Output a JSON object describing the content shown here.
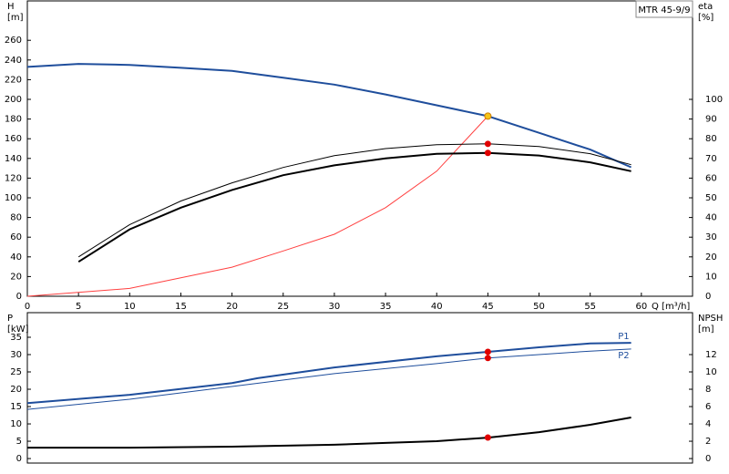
{
  "chart_data": [
    {
      "type": "line",
      "title": "MTR 45-9/9",
      "x_label": "Q [m³/h]",
      "y_label": "H",
      "y_unit": "[m]",
      "y2_label": "eta",
      "y2_unit": "[%]",
      "xlim": [
        0,
        65
      ],
      "xticks": [
        0,
        5,
        10,
        15,
        20,
        25,
        30,
        35,
        40,
        45,
        50,
        55,
        60
      ],
      "ylim": [
        0,
        300
      ],
      "yticks": [
        0,
        20,
        40,
        60,
        80,
        100,
        120,
        140,
        160,
        180,
        200,
        220,
        240,
        260
      ],
      "y2lim": [
        0,
        150
      ],
      "y2ticks": [
        0,
        10,
        20,
        30,
        40,
        50,
        60,
        70,
        80,
        90,
        100
      ],
      "series": [
        {
          "x": [
            0,
            5,
            10,
            15,
            20,
            25,
            30,
            35,
            40,
            45,
            50,
            55,
            59
          ],
          "values": [
            233,
            236,
            235,
            232,
            229,
            222,
            215,
            205,
            194,
            183,
            166,
            149,
            131
          ],
          "color": "#1f4e9c",
          "width": 2
        },
        {
          "x": [
            0,
            10,
            20,
            25,
            30,
            35,
            40,
            45
          ],
          "values": [
            0,
            8,
            29.5,
            46,
            63,
            90,
            127,
            183
          ],
          "color": "#ff4040",
          "width": 1
        },
        {
          "x": [
            5,
            10,
            15,
            20,
            25,
            30,
            35,
            40,
            45,
            50,
            55,
            59
          ],
          "values": [
            20,
            36.4,
            48.4,
            57.6,
            65.4,
            71.4,
            75,
            77,
            77.4,
            76,
            72.4,
            66.8
          ],
          "color": "#000000",
          "width": 1,
          "axis": "y2"
        },
        {
          "x": [
            5,
            10,
            15,
            20,
            25,
            30,
            35,
            40,
            45,
            50,
            55,
            59
          ],
          "values": [
            17.5,
            34,
            45,
            54,
            61.5,
            66.5,
            70,
            72.3,
            72.8,
            71.5,
            68,
            63.5
          ],
          "color": "#000000",
          "width": 2,
          "axis": "y2"
        },
        {
          "style": "points",
          "x": [
            45
          ],
          "values": [
            183
          ],
          "color": "#f5c518"
        },
        {
          "style": "points",
          "x": [
            45,
            45
          ],
          "values": [
            77.4,
            72.8
          ],
          "color": "#e00000",
          "axis": "y2"
        }
      ]
    },
    {
      "type": "line",
      "y_label": "P",
      "y_unit": "[kW]",
      "y2_label": "NPSH",
      "y2_unit": "[m]",
      "xlim": [
        0,
        65
      ],
      "ylim": [
        -1.3,
        42.1
      ],
      "yticks": [
        0,
        5,
        10,
        15,
        20,
        25,
        30,
        35
      ],
      "y2lim": [
        -0.52,
        16.84
      ],
      "y2ticks": [
        0,
        2,
        4,
        6,
        8,
        10,
        12
      ],
      "series": [
        {
          "name": "P1",
          "x": [
            0,
            10,
            20,
            22.5,
            30,
            40,
            45,
            50,
            55,
            59
          ],
          "values": [
            16,
            18.4,
            21.8,
            23.2,
            26.3,
            29.5,
            30.8,
            32.1,
            33.2,
            33.4
          ],
          "color": "#1f4e9c",
          "width": 2
        },
        {
          "name": "P2",
          "x": [
            0,
            10,
            20,
            30,
            40,
            45,
            50,
            55,
            59
          ],
          "values": [
            14.2,
            17.1,
            20.8,
            24.5,
            27.4,
            29,
            30,
            31,
            31.6
          ],
          "color": "#1f4e9c",
          "width": 1
        },
        {
          "x": [
            0,
            10,
            20,
            30,
            35,
            40,
            45,
            50,
            55,
            59
          ],
          "values": [
            1.26,
            1.26,
            1.37,
            1.6,
            1.8,
            2,
            2.42,
            3.05,
            3.9,
            4.74
          ],
          "color": "#000000",
          "width": 2,
          "axis": "y2"
        },
        {
          "style": "points",
          "x": [
            45,
            45
          ],
          "values": [
            30.8,
            29
          ],
          "color": "#e00000"
        },
        {
          "style": "points",
          "x": [
            45
          ],
          "values": [
            2.42
          ],
          "color": "#e00000",
          "axis": "y2"
        }
      ]
    }
  ]
}
